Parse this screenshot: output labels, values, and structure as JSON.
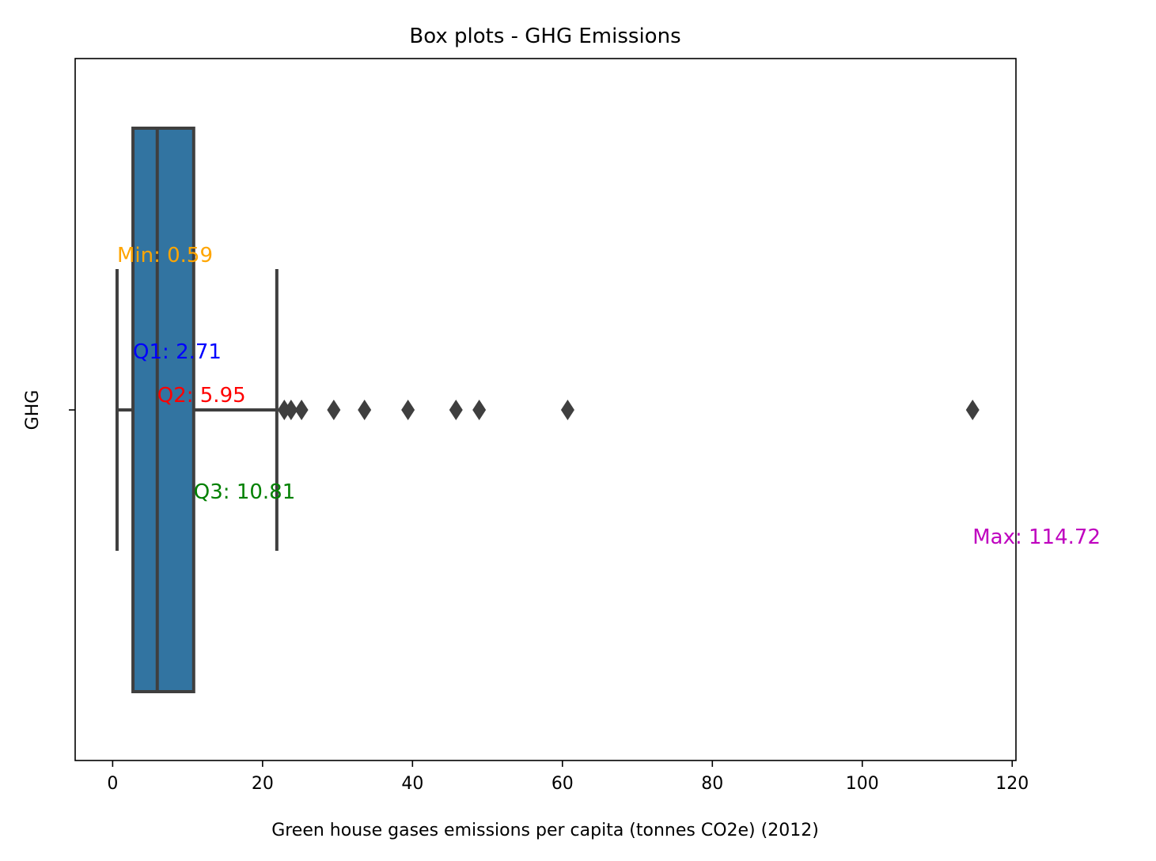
{
  "chart_data": {
    "type": "box",
    "title": "Box plots - GHG Emissions",
    "xlabel": "Green house gases emissions per capita (tonnes CO2e) (2012)",
    "ylabel": "GHG",
    "category": "GHG",
    "xlim": [
      -5,
      120.5
    ],
    "xticks": [
      0,
      20,
      40,
      60,
      80,
      100,
      120
    ],
    "grid": false,
    "box": {
      "whisker_low": 0.59,
      "q1": 2.71,
      "median": 5.95,
      "q3": 10.81,
      "whisker_high": 21.9,
      "color": "#3274a1",
      "line_color": "#3f3f3f"
    },
    "outliers": [
      22.9,
      23.8,
      25.2,
      29.5,
      33.6,
      39.4,
      45.8,
      48.9,
      60.7,
      114.72
    ],
    "annotations": [
      {
        "text": "Min: 0.59",
        "x": 0.59,
        "color": "#ffa500"
      },
      {
        "text": "Q1: 2.71",
        "x": 2.71,
        "color": "#0000ff"
      },
      {
        "text": "Q2: 5.95",
        "x": 5.95,
        "color": "#ff0000"
      },
      {
        "text": "Q3: 10.81",
        "x": 10.81,
        "color": "#008000"
      },
      {
        "text": "Max: 114.72",
        "x": 114.72,
        "color": "#bf00bf"
      }
    ]
  }
}
